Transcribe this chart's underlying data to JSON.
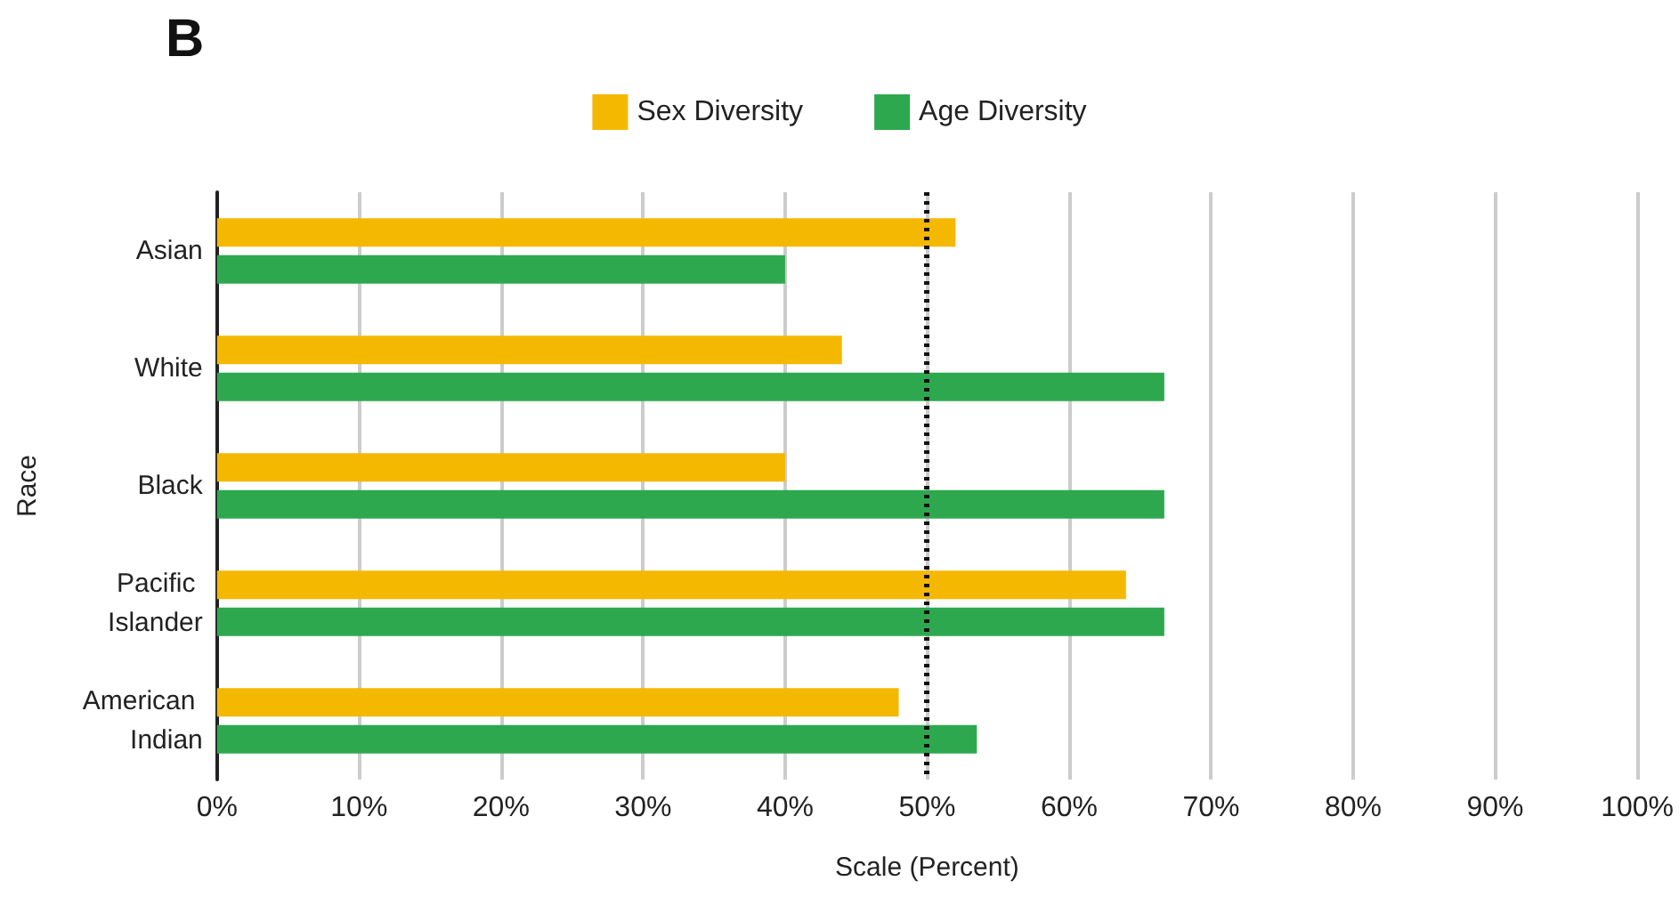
{
  "chart_data": {
    "type": "bar",
    "orientation": "horizontal",
    "title": "B",
    "xlabel": "Scale (Percent)",
    "ylabel": "Race",
    "categories": [
      "Asian",
      "White",
      "Black",
      "Pacific Islander",
      "American Indian"
    ],
    "series": [
      {
        "name": "Sex Diversity",
        "color": "#f5b800",
        "values": [
          52,
          44,
          40,
          64,
          48
        ]
      },
      {
        "name": "Age Diversity",
        "color": "#2ea84f",
        "values": [
          40,
          66.7,
          66.7,
          66.7,
          53.5
        ]
      }
    ],
    "xlim": [
      0,
      100
    ],
    "xticks": [
      {
        "value": 0,
        "label": "0%"
      },
      {
        "value": 10,
        "label": "10%"
      },
      {
        "value": 20,
        "label": "20%"
      },
      {
        "value": 30,
        "label": "30%"
      },
      {
        "value": 40,
        "label": "40%"
      },
      {
        "value": 50,
        "label": "50%"
      },
      {
        "value": 60,
        "label": "60%"
      },
      {
        "value": 70,
        "label": "70%"
      },
      {
        "value": 80,
        "label": "80%"
      },
      {
        "value": 90,
        "label": "90%"
      },
      {
        "value": 100,
        "label": "100%"
      }
    ],
    "ref_lines": [
      {
        "axis": "x",
        "value": 50,
        "color": "#111111",
        "line_style": "dotted"
      }
    ],
    "grid": "x",
    "legend": "top"
  }
}
